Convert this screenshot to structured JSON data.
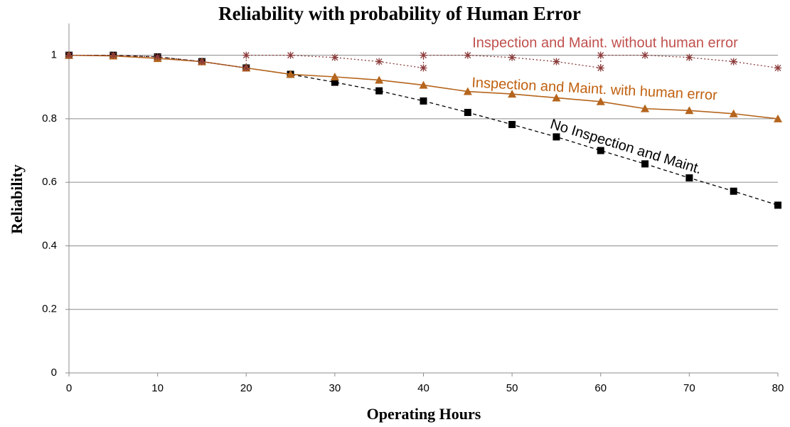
{
  "chart_data": {
    "type": "line",
    "title": "Reliability with probability of Human Error",
    "x_label": "Operating Hours",
    "y_label": "Reliability",
    "x": [
      0,
      5,
      10,
      15,
      20,
      25,
      30,
      35,
      40,
      45,
      50,
      55,
      60,
      65,
      70,
      75,
      80
    ],
    "series": [
      {
        "name": "No Inspection and Maint.",
        "color": "#000000",
        "line": "dashed",
        "marker": "square",
        "values": [
          1.0,
          1.0,
          0.995,
          0.98,
          0.96,
          0.94,
          0.915,
          0.888,
          0.856,
          0.82,
          0.782,
          0.743,
          0.7,
          0.658,
          0.614,
          0.572,
          0.528
        ]
      },
      {
        "name": "Inspection and Maint. with human error",
        "color": "#b5651d",
        "line": "solid",
        "marker": "triangle",
        "values": [
          1.0,
          0.998,
          0.99,
          0.98,
          0.96,
          0.94,
          0.932,
          0.922,
          0.906,
          0.886,
          0.878,
          0.866,
          0.854,
          0.832,
          0.826,
          0.816,
          0.8
        ]
      },
      {
        "name": "Inspection and Maint. without human error",
        "color": "#8b3a3a",
        "line": "dotted",
        "marker": "star",
        "x": [
          0,
          5,
          10,
          15,
          20,
          20,
          25,
          30,
          35,
          40,
          40,
          45,
          50,
          55,
          60,
          60,
          65,
          70,
          75,
          80
        ],
        "values": [
          1.0,
          1.0,
          0.995,
          0.98,
          0.96,
          1.0,
          1.0,
          0.993,
          0.98,
          0.96,
          1.0,
          1.0,
          0.993,
          0.98,
          0.96,
          1.0,
          1.0,
          0.993,
          0.98,
          0.96
        ]
      }
    ],
    "xlim": [
      0,
      80
    ],
    "xticks": [
      0,
      10,
      20,
      30,
      40,
      50,
      60,
      70,
      80
    ],
    "ylim": [
      0,
      1.1
    ],
    "yticks": [
      0,
      0.2,
      0.4,
      0.6,
      0.8,
      1
    ],
    "grid": true
  }
}
